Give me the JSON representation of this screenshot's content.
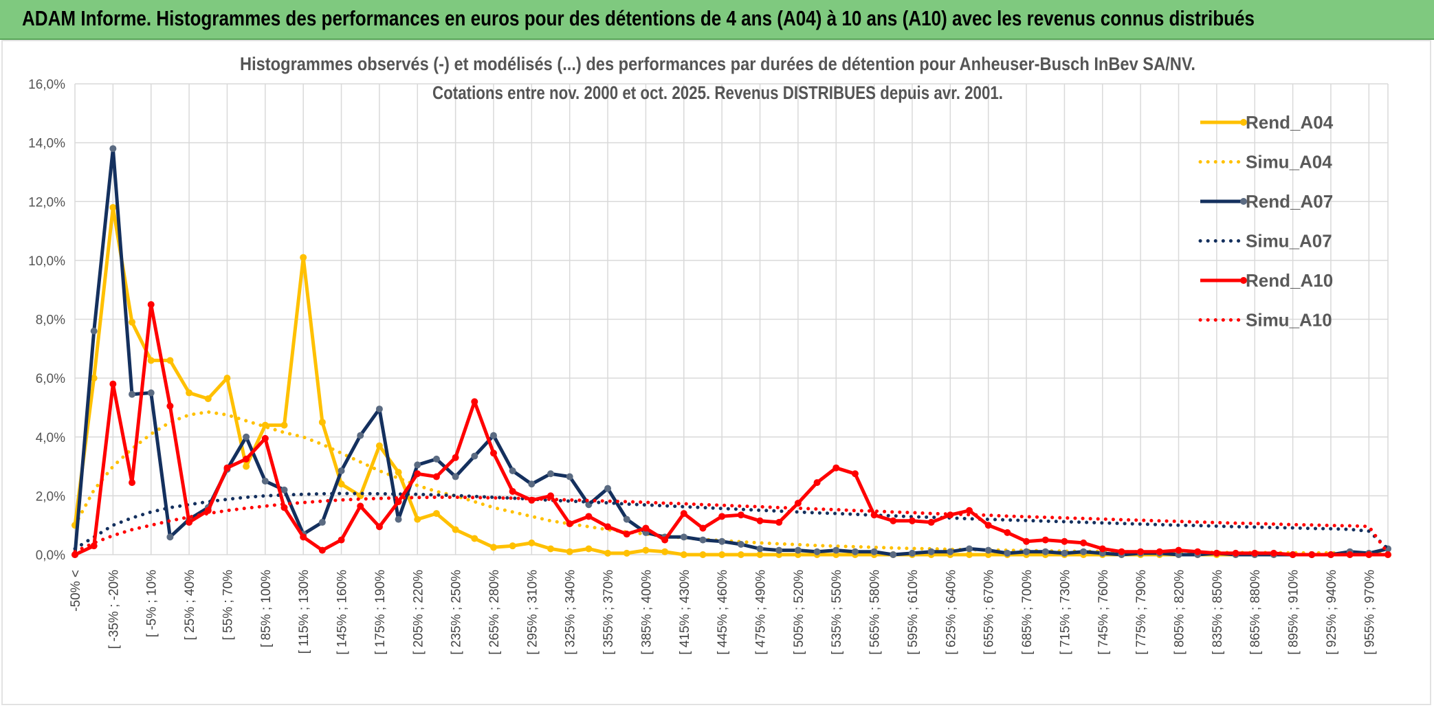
{
  "banner": {
    "title": "ADAM Informe. Histogrammes des performances en euros pour des détentions de 4 ans (A04) à 10 ans (A10) avec les revenus connus distribués"
  },
  "chart_data": {
    "type": "line",
    "title_line1": "Histogrammes observés (-) et modélisés (...) des performances par durées de détention pour Anheuser-Busch InBev SA/NV.",
    "title_line2": "Cotations entre nov. 2000 et oct. 2025. Revenus DISTRIBUES depuis avr. 2001.",
    "ylim": [
      0,
      16
    ],
    "ytick_labels": [
      "0,0%",
      "2,0%",
      "4,0%",
      "6,0%",
      "8,0%",
      "10,0%",
      "12,0%",
      "14,0%",
      "16,0%"
    ],
    "x_labels": [
      "-50% <",
      "[ -35% ; -20%",
      "[ -5% ; 10%",
      "[ 25% ; 40%",
      "[ 55% ; 70%",
      "[ 85% ; 100%",
      "[ 115% ; 130%",
      "[ 145% ; 160%",
      "[ 175% ; 190%",
      "[ 205% ; 220%",
      "[ 235% ; 250%",
      "[ 265% ; 280%",
      "[ 295% ; 310%",
      "[ 325% ; 340%",
      "[ 355% ; 370%",
      "[ 385% ; 400%",
      "[ 415% ; 430%",
      "[ 445% ; 460%",
      "[ 475% ; 490%",
      "[ 505% ; 520%",
      "[ 535% ; 550%",
      "[ 565% ; 580%",
      "[ 595% ; 610%",
      "[ 625% ; 640%",
      "[ 655% ; 670%",
      "[ 685% ; 700%",
      "[ 715% ; 730%",
      "[ 745% ; 760%",
      "[ 775% ; 790%",
      "[ 805% ; 820%",
      "[ 835% ; 850%",
      "[ 865% ; 880%",
      "[ 895% ; 910%",
      "[ 925% ; 940%",
      "[ 955% ; 970%"
    ],
    "n_points": 70,
    "series": [
      {
        "name": "Rend_A04",
        "style": "solid",
        "color": "#ffc000",
        "values": [
          1.0,
          6.0,
          11.8,
          7.9,
          6.6,
          6.6,
          5.5,
          5.3,
          6.0,
          3.0,
          4.4,
          4.4,
          10.1,
          4.5,
          2.4,
          2.0,
          3.7,
          2.8,
          1.2,
          1.4,
          0.85,
          0.55,
          0.25,
          0.3,
          0.4,
          0.2,
          0.1,
          0.2,
          0.05,
          0.05,
          0.15,
          0.1,
          0.0,
          0.0,
          0.0,
          0.0,
          0.0,
          0.0,
          0.0,
          0.0,
          0.0,
          0.0,
          0.0,
          0.0,
          0.0,
          0.0,
          0.0,
          0.0,
          0.0,
          0.0,
          0.0,
          0.0,
          0.0,
          0.0,
          0.0,
          0.0,
          0.0,
          0.0,
          0.0,
          0.0,
          0.0,
          0.0,
          0.0,
          0.0,
          0.0,
          0.0,
          0.0,
          0.0,
          0.0,
          0.0
        ]
      },
      {
        "name": "Simu_A04",
        "style": "dotted",
        "color": "#ffc000",
        "values": [
          1.0,
          2.2,
          3.0,
          3.6,
          4.1,
          4.5,
          4.75,
          4.85,
          4.75,
          4.55,
          4.35,
          4.15,
          4.0,
          3.75,
          3.45,
          3.15,
          2.85,
          2.6,
          2.35,
          2.15,
          2.0,
          1.8,
          1.6,
          1.45,
          1.3,
          1.15,
          1.05,
          0.95,
          0.85,
          0.77,
          0.7,
          0.63,
          0.57,
          0.52,
          0.48,
          0.44,
          0.4,
          0.37,
          0.34,
          0.31,
          0.29,
          0.27,
          0.25,
          0.23,
          0.21,
          0.2,
          0.18,
          0.17,
          0.16,
          0.15,
          0.14,
          0.13,
          0.12,
          0.11,
          0.11,
          0.1,
          0.1,
          0.09,
          0.09,
          0.08,
          0.08,
          0.07,
          0.07,
          0.07,
          0.06,
          0.06,
          0.06,
          0.05,
          0.05,
          0.05
        ]
      },
      {
        "name": "Rend_A07",
        "style": "solid",
        "color": "#14305e",
        "values": [
          0.0,
          7.6,
          13.8,
          5.45,
          5.5,
          0.6,
          1.2,
          1.6,
          2.9,
          4.0,
          2.5,
          2.2,
          0.7,
          1.1,
          2.85,
          4.05,
          4.95,
          1.2,
          3.05,
          3.25,
          2.65,
          3.35,
          4.05,
          2.85,
          2.4,
          2.75,
          2.65,
          1.7,
          2.25,
          1.2,
          0.75,
          0.6,
          0.6,
          0.5,
          0.45,
          0.35,
          0.2,
          0.15,
          0.15,
          0.1,
          0.15,
          0.1,
          0.1,
          0.0,
          0.05,
          0.1,
          0.1,
          0.2,
          0.15,
          0.05,
          0.1,
          0.1,
          0.05,
          0.1,
          0.05,
          0.0,
          0.05,
          0.05,
          0.0,
          0.0,
          0.05,
          0.0,
          0.0,
          0.0,
          0.0,
          0.0,
          0.0,
          0.1,
          0.05,
          0.2
        ]
      },
      {
        "name": "Simu_A07",
        "style": "dotted",
        "color": "#14305e",
        "values": [
          0.2,
          0.6,
          1.0,
          1.25,
          1.45,
          1.6,
          1.7,
          1.8,
          1.88,
          1.95,
          2.0,
          2.03,
          2.05,
          2.07,
          2.08,
          2.08,
          2.07,
          2.06,
          2.05,
          2.03,
          2.01,
          1.98,
          1.95,
          1.92,
          1.89,
          1.85,
          1.82,
          1.79,
          1.76,
          1.72,
          1.69,
          1.66,
          1.63,
          1.6,
          1.57,
          1.54,
          1.51,
          1.48,
          1.45,
          1.42,
          1.4,
          1.37,
          1.34,
          1.32,
          1.29,
          1.27,
          1.25,
          1.22,
          1.2,
          1.18,
          1.16,
          1.14,
          1.12,
          1.1,
          1.08,
          1.06,
          1.04,
          1.02,
          1.0,
          0.99,
          0.97,
          0.95,
          0.94,
          0.92,
          0.91,
          0.89,
          0.88,
          0.86,
          0.8,
          0.2
        ]
      },
      {
        "name": "Rend_A10",
        "style": "solid",
        "color": "#ff0000",
        "values": [
          0.0,
          0.3,
          5.8,
          2.45,
          8.5,
          5.05,
          1.1,
          1.5,
          2.95,
          3.25,
          3.95,
          1.6,
          0.6,
          0.15,
          0.5,
          1.65,
          0.95,
          1.8,
          2.75,
          2.65,
          3.3,
          5.2,
          3.45,
          2.15,
          1.85,
          2.0,
          1.05,
          1.3,
          0.95,
          0.7,
          0.9,
          0.5,
          1.4,
          0.9,
          1.3,
          1.35,
          1.15,
          1.1,
          1.75,
          2.45,
          2.95,
          2.75,
          1.35,
          1.15,
          1.15,
          1.1,
          1.35,
          1.5,
          1.0,
          0.75,
          0.45,
          0.5,
          0.45,
          0.4,
          0.2,
          0.1,
          0.1,
          0.1,
          0.15,
          0.1,
          0.05,
          0.05,
          0.05,
          0.05,
          0.0,
          0.0,
          0.0,
          0.0,
          0.0,
          0.0
        ]
      },
      {
        "name": "Simu_A10",
        "style": "dotted",
        "color": "#ff0000",
        "values": [
          0.1,
          0.4,
          0.65,
          0.85,
          1.0,
          1.15,
          1.28,
          1.4,
          1.5,
          1.58,
          1.65,
          1.72,
          1.77,
          1.82,
          1.86,
          1.89,
          1.91,
          1.93,
          1.94,
          1.95,
          1.95,
          1.94,
          1.93,
          1.92,
          1.9,
          1.88,
          1.86,
          1.84,
          1.82,
          1.8,
          1.78,
          1.75,
          1.73,
          1.7,
          1.68,
          1.65,
          1.63,
          1.6,
          1.58,
          1.55,
          1.53,
          1.5,
          1.48,
          1.45,
          1.43,
          1.4,
          1.38,
          1.36,
          1.34,
          1.31,
          1.29,
          1.27,
          1.25,
          1.23,
          1.21,
          1.19,
          1.17,
          1.15,
          1.13,
          1.11,
          1.09,
          1.07,
          1.06,
          1.04,
          1.02,
          1.01,
          0.99,
          0.98,
          0.96,
          0.05
        ]
      }
    ],
    "legend_position": "right",
    "grid": true
  }
}
